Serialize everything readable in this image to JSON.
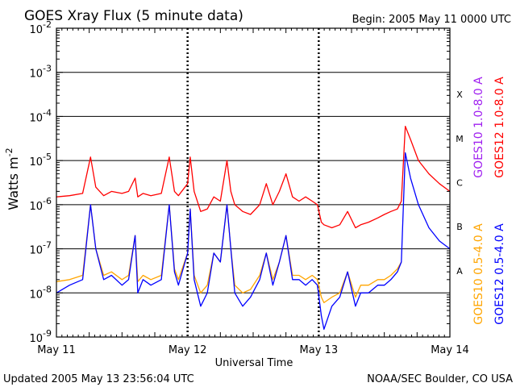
{
  "chart_data": {
    "type": "line",
    "title": "GOES Xray Flux (5 minute data)",
    "begin_label": "Begin:  2005 May 11 0000 UTC",
    "xlabel": "Universal Time",
    "ylabel_base": "Watts m",
    "ylabel_exp": "-2",
    "x_range_days": [
      0,
      3
    ],
    "x_ticks": [
      {
        "day": 0,
        "label": "May 11"
      },
      {
        "day": 1,
        "label": "May 12"
      },
      {
        "day": 2,
        "label": "May 13"
      },
      {
        "day": 3,
        "label": "May 14"
      }
    ],
    "y_scale": "log",
    "ylim": [
      1e-09,
      0.01
    ],
    "y_ticks": [
      {
        "exp": -9,
        "label": "10",
        "sup": "-9"
      },
      {
        "exp": -8,
        "label": "10",
        "sup": "-8"
      },
      {
        "exp": -7,
        "label": "10",
        "sup": "-7"
      },
      {
        "exp": -6,
        "label": "10",
        "sup": "-6"
      },
      {
        "exp": -5,
        "label": "10",
        "sup": "-5"
      },
      {
        "exp": -4,
        "label": "10",
        "sup": "-4"
      },
      {
        "exp": -3,
        "label": "10",
        "sup": "-3"
      },
      {
        "exp": -2,
        "label": "10",
        "sup": "-2"
      }
    ],
    "flare_classes": [
      {
        "label": "A",
        "exp": -7.5
      },
      {
        "label": "B",
        "exp": -6.5
      },
      {
        "label": "C",
        "exp": -5.5
      },
      {
        "label": "M",
        "exp": -4.5
      },
      {
        "label": "X",
        "exp": -3.5
      }
    ],
    "series": [
      {
        "name": "GOES12 1.0-8.0 A",
        "color": "#ff0000",
        "x": [
          0.0,
          0.1,
          0.2,
          0.26,
          0.3,
          0.36,
          0.42,
          0.5,
          0.55,
          0.6,
          0.62,
          0.66,
          0.72,
          0.8,
          0.86,
          0.9,
          0.93,
          1.0,
          1.02,
          1.05,
          1.1,
          1.15,
          1.2,
          1.25,
          1.3,
          1.33,
          1.36,
          1.42,
          1.48,
          1.55,
          1.6,
          1.65,
          1.7,
          1.75,
          1.8,
          1.85,
          1.9,
          1.95,
          1.99,
          2.02,
          2.04,
          2.1,
          2.16,
          2.22,
          2.28,
          2.32,
          2.38,
          2.45,
          2.5,
          2.55,
          2.6,
          2.63,
          2.66,
          2.7,
          2.76,
          2.84,
          2.92,
          3.0
        ],
        "y": [
          1.5e-06,
          1.6e-06,
          1.8e-06,
          1.2e-05,
          2.5e-06,
          1.6e-06,
          2e-06,
          1.8e-06,
          2e-06,
          4e-06,
          1.5e-06,
          1.8e-06,
          1.6e-06,
          1.8e-06,
          1.2e-05,
          2e-06,
          1.6e-06,
          3e-06,
          1.2e-05,
          2e-06,
          7e-07,
          8e-07,
          1.5e-06,
          1.2e-06,
          1e-05,
          2e-06,
          1e-06,
          7e-07,
          6e-07,
          1e-06,
          3e-06,
          1e-06,
          2e-06,
          5e-06,
          1.5e-06,
          1.2e-06,
          1.5e-06,
          1.2e-06,
          1e-06,
          4e-07,
          3.5e-07,
          3e-07,
          3.5e-07,
          7e-07,
          3e-07,
          3.5e-07,
          4e-07,
          5e-07,
          6e-07,
          7e-07,
          8e-07,
          1.2e-06,
          6e-05,
          3e-05,
          1e-05,
          5e-06,
          3e-06,
          2e-06
        ]
      },
      {
        "name": "GOES10 1.0-8.0 A",
        "color": "#a020f0",
        "x": [],
        "y": []
      },
      {
        "name": "GOES12 0.5-4.0 A",
        "color": "#0000ff",
        "x": [
          0.0,
          0.1,
          0.2,
          0.26,
          0.3,
          0.36,
          0.42,
          0.5,
          0.55,
          0.6,
          0.62,
          0.66,
          0.72,
          0.8,
          0.86,
          0.9,
          0.93,
          1.0,
          1.02,
          1.05,
          1.1,
          1.15,
          1.2,
          1.25,
          1.3,
          1.33,
          1.36,
          1.42,
          1.48,
          1.55,
          1.6,
          1.65,
          1.7,
          1.75,
          1.8,
          1.85,
          1.9,
          1.95,
          1.99,
          2.02,
          2.04,
          2.1,
          2.16,
          2.22,
          2.28,
          2.32,
          2.38,
          2.45,
          2.5,
          2.55,
          2.6,
          2.63,
          2.66,
          2.7,
          2.76,
          2.84,
          2.92,
          3.0
        ],
        "y": [
          1e-08,
          1.5e-08,
          2e-08,
          1e-06,
          1e-07,
          2e-08,
          2.5e-08,
          1.5e-08,
          2e-08,
          2e-07,
          1e-08,
          2e-08,
          1.5e-08,
          2e-08,
          1e-06,
          3e-08,
          1.5e-08,
          8e-08,
          8e-07,
          2e-08,
          5e-09,
          1e-08,
          8e-08,
          5e-08,
          1e-06,
          1e-07,
          1e-08,
          5e-09,
          8e-09,
          2e-08,
          8e-08,
          1.5e-08,
          5e-08,
          2e-07,
          2e-08,
          2e-08,
          1.5e-08,
          2e-08,
          1.5e-08,
          3e-09,
          1.5e-09,
          5e-09,
          8e-09,
          3e-08,
          5e-09,
          1e-08,
          1e-08,
          1.5e-08,
          1.5e-08,
          2e-08,
          3e-08,
          5e-08,
          1.5e-05,
          4e-06,
          1e-06,
          3e-07,
          1.5e-07,
          1e-07
        ]
      },
      {
        "name": "GOES10 0.5-4.0 A",
        "color": "#ffa500",
        "x": [
          0.0,
          0.1,
          0.2,
          0.26,
          0.3,
          0.36,
          0.42,
          0.5,
          0.55,
          0.6,
          0.62,
          0.66,
          0.72,
          0.8,
          0.86,
          0.9,
          0.93,
          1.0,
          1.02,
          1.05,
          1.1,
          1.15,
          1.2,
          1.25,
          1.3,
          1.33,
          1.36,
          1.42,
          1.48,
          1.55,
          1.6,
          1.65,
          1.7,
          1.75,
          1.8,
          1.85,
          1.9,
          1.95,
          1.99,
          2.02,
          2.04,
          2.1,
          2.16,
          2.22,
          2.28,
          2.32,
          2.38,
          2.45,
          2.5,
          2.55,
          2.6,
          2.63
        ],
        "y": [
          1.8e-08,
          2e-08,
          2.5e-08,
          1e-06,
          1e-07,
          2.5e-08,
          3e-08,
          2e-08,
          2.5e-08,
          2e-07,
          1.8e-08,
          2.5e-08,
          2e-08,
          2.5e-08,
          1e-06,
          3.5e-08,
          2e-08,
          8e-08,
          8e-07,
          2.5e-08,
          1e-08,
          1.5e-08,
          8e-08,
          5e-08,
          1e-06,
          1e-07,
          1.5e-08,
          1e-08,
          1.2e-08,
          2.5e-08,
          8e-08,
          2e-08,
          5e-08,
          2e-07,
          2.5e-08,
          2.5e-08,
          2e-08,
          2.5e-08,
          2e-08,
          8e-09,
          6e-09,
          8e-09,
          1e-08,
          3e-08,
          8e-09,
          1.5e-08,
          1.5e-08,
          2e-08,
          2e-08,
          2.5e-08,
          3.5e-08,
          5e-08
        ]
      }
    ],
    "legend_labels": [
      {
        "id": "g10-long",
        "text": "GOES10 1.0-8.0 A",
        "color": "#a020f0"
      },
      {
        "id": "g12-long",
        "text": "GOES12 1.0-8.0 A",
        "color": "#ff0000"
      },
      {
        "id": "g10-short",
        "text": "GOES10 0.5-4.0 A",
        "color": "#ffa500"
      },
      {
        "id": "g12-short",
        "text": "GOES12 0.5-4.0 A",
        "color": "#0000ff"
      }
    ],
    "footer_left": "Updated 2005 May 13 23:56:04 UTC",
    "footer_right": "NOAA/SEC Boulder, CO USA"
  }
}
